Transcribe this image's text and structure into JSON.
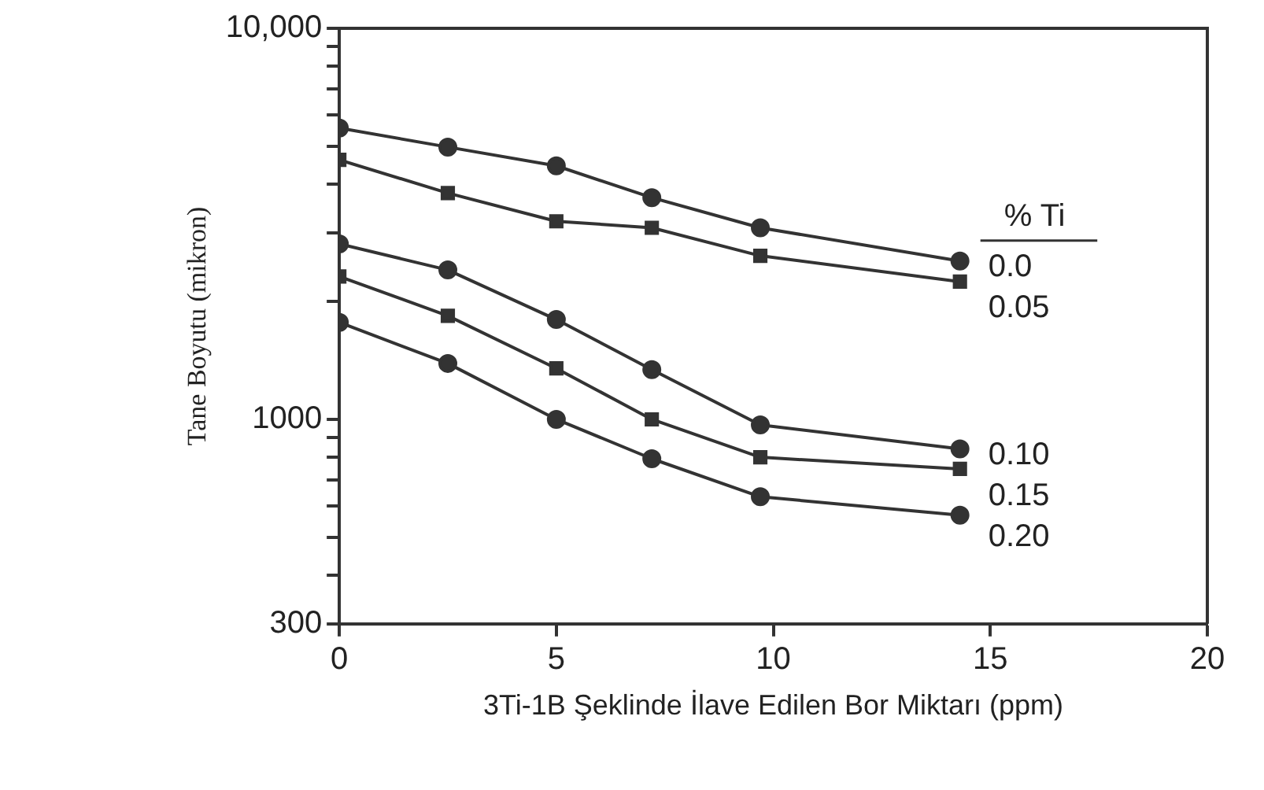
{
  "chart_data": {
    "type": "line",
    "xlabel": "3Ti-1B Şeklinde İlave Edilen Bor Miktarı (ppm)",
    "ylabel": "Tane Boyutu (mikron)",
    "legend_title": "% Ti",
    "x": [
      0,
      2.5,
      5,
      7.2,
      9.7,
      14.3
    ],
    "series": [
      {
        "name": "0.0",
        "color": "#333333",
        "marker": "circle",
        "values": [
          5560,
          4970,
          4450,
          3690,
          3090,
          2540
        ]
      },
      {
        "name": "0.05",
        "color": "#333333",
        "marker": "square",
        "values": [
          4610,
          3790,
          3210,
          3090,
          2620,
          2250
        ]
      },
      {
        "name": "0.10",
        "color": "#333333",
        "marker": "circle",
        "values": [
          2810,
          2410,
          1800,
          1340,
          968,
          840
        ]
      },
      {
        "name": "0.15",
        "color": "#333333",
        "marker": "square",
        "values": [
          2320,
          1840,
          1350,
          1000,
          800,
          747
        ]
      },
      {
        "name": "0.20",
        "color": "#333333",
        "marker": "circle",
        "values": [
          1770,
          1390,
          1000,
          793,
          634,
          569
        ]
      }
    ],
    "log": "y",
    "xlim": [
      0,
      20
    ],
    "xticks": [
      0,
      5,
      10,
      15,
      20
    ],
    "ylim": [
      300,
      10000
    ],
    "yticks": [
      300,
      {
        "value": 400,
        "label": null
      },
      {
        "value": 500,
        "label": null
      },
      {
        "value": 600,
        "label": null
      },
      {
        "value": 700,
        "label": null
      },
      {
        "value": 800,
        "label": null
      },
      {
        "value": 900,
        "label": null
      },
      1000,
      {
        "value": 2000,
        "label": null
      },
      {
        "value": 3000,
        "label": null
      },
      {
        "value": 4000,
        "label": null
      },
      {
        "value": 5000,
        "label": null
      },
      {
        "value": 6000,
        "label": null
      },
      {
        "value": 7000,
        "label": null
      },
      {
        "value": 8000,
        "label": null
      },
      {
        "value": 9000,
        "label": null
      },
      {
        "value": 10000,
        "label": "10,000"
      }
    ],
    "grid": false,
    "legend": "right",
    "line_style": "solid"
  }
}
